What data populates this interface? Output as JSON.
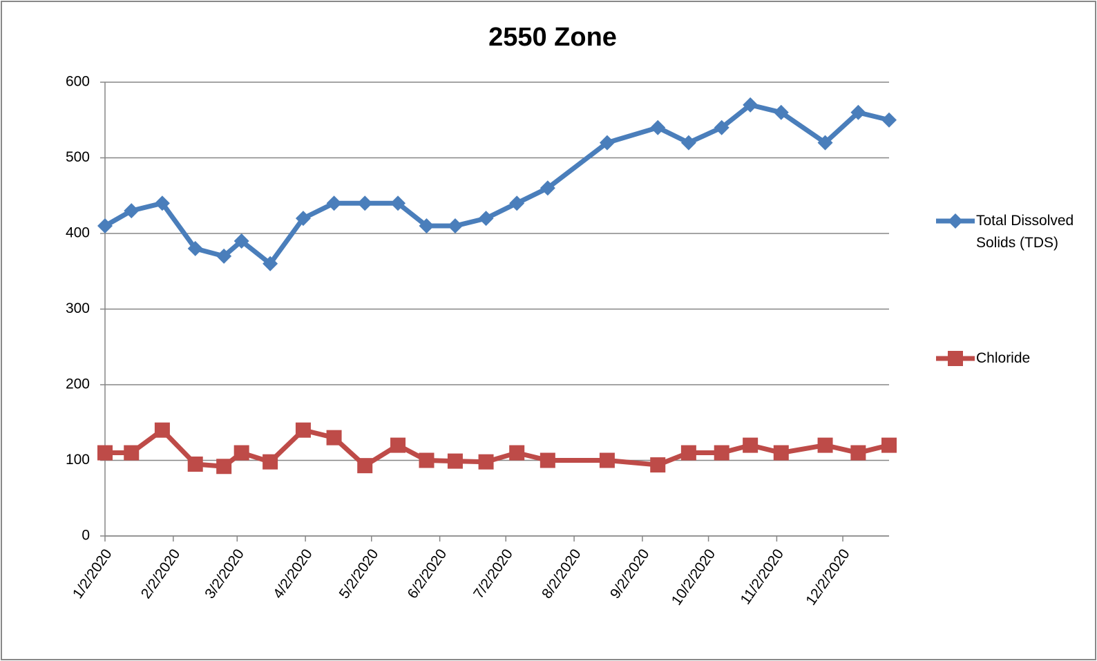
{
  "chart_data": {
    "type": "line",
    "title": "2550 Zone",
    "x": [
      "1/2/2020",
      "1/14/2020",
      "1/28/2020",
      "2/12/2020",
      "2/25/2020",
      "3/4/2020",
      "3/17/2020",
      "4/1/2020",
      "4/15/2020",
      "4/29/2020",
      "5/14/2020",
      "5/27/2020",
      "6/9/2020",
      "6/23/2020",
      "7/7/2020",
      "7/21/2020",
      "8/17/2020",
      "9/9/2020",
      "9/23/2020",
      "10/8/2020",
      "10/21/2020",
      "11/4/2020",
      "11/24/2020",
      "12/9/2020",
      "12/23/2020"
    ],
    "series": [
      {
        "name": "Total Dissolved Solids (TDS)",
        "color": "#4a7ebb",
        "marker": "diamond",
        "values": [
          410,
          430,
          440,
          380,
          370,
          390,
          360,
          420,
          440,
          440,
          440,
          410,
          410,
          420,
          440,
          460,
          520,
          540,
          520,
          540,
          570,
          560,
          520,
          560,
          550
        ]
      },
      {
        "name": "Chloride",
        "color": "#be4b48",
        "marker": "square",
        "values": [
          110,
          110,
          140,
          95,
          92,
          110,
          98,
          140,
          130,
          93,
          120,
          100,
          99,
          98,
          110,
          100,
          100,
          94,
          110,
          110,
          120,
          110,
          120,
          110,
          120
        ]
      }
    ],
    "xlim": [
      "1/2/2020",
      "12/23/2020"
    ],
    "xticks": [
      "1/2/2020",
      "2/2/2020",
      "3/2/2020",
      "4/2/2020",
      "5/2/2020",
      "6/2/2020",
      "7/2/2020",
      "8/2/2020",
      "9/2/2020",
      "10/2/2020",
      "11/2/2020",
      "12/2/2020"
    ],
    "ylim": [
      0,
      600
    ],
    "yticks": [
      0,
      100,
      200,
      300,
      400,
      500,
      600
    ],
    "grid": true,
    "legend": "right"
  }
}
